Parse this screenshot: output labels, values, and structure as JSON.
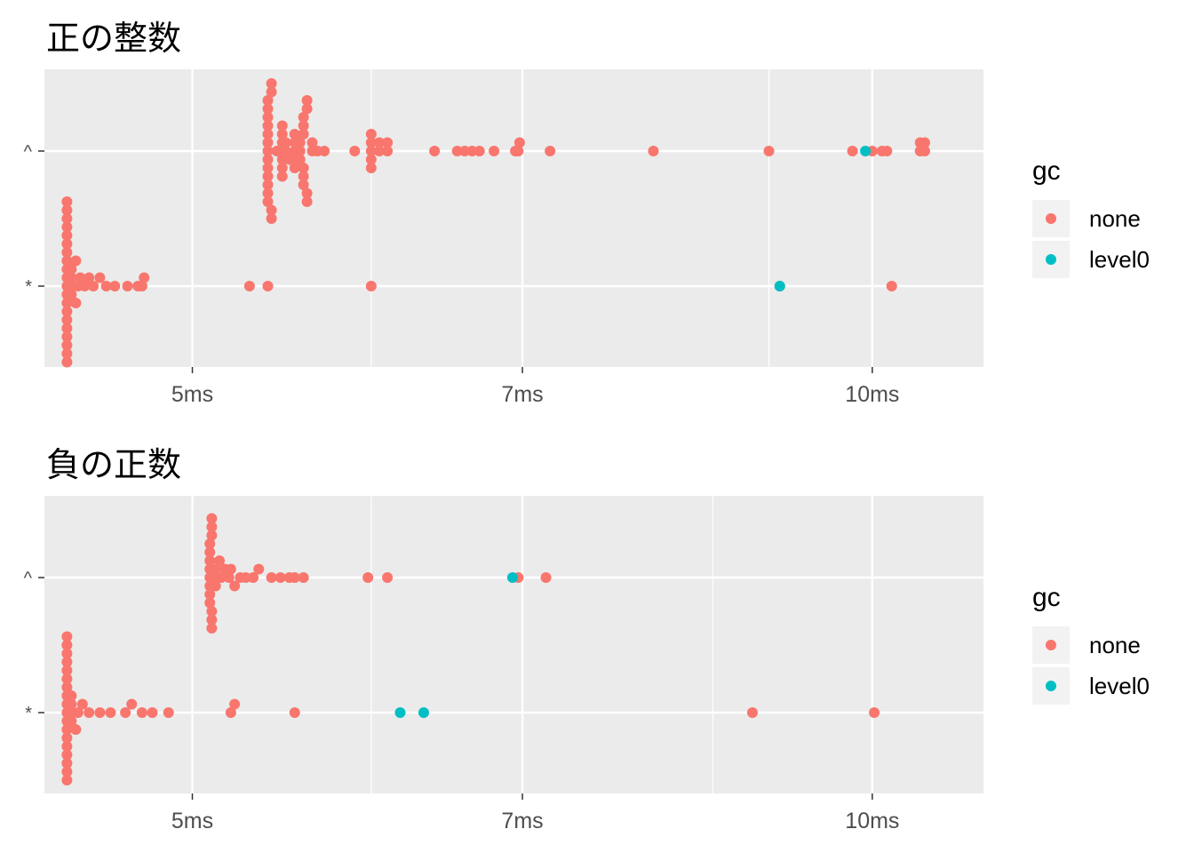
{
  "legend": {
    "title": "gc",
    "items": [
      {
        "label": "none",
        "color": "#F8766D"
      },
      {
        "label": "level0",
        "color": "#00BFC4"
      }
    ]
  },
  "chart_data": [
    {
      "type": "scatter",
      "title": "正の整数",
      "x_scale": "log",
      "x_unit": "ms",
      "xlim": [
        4.3,
        11.2
      ],
      "x_ticks": [
        5,
        7,
        10
      ],
      "x_tick_labels": [
        "5ms",
        "7ms",
        "10ms"
      ],
      "x_minor_gridlines": [
        6,
        9
      ],
      "y_categories": [
        "*",
        "^"
      ],
      "grid": true,
      "legend_position": "right",
      "series": [
        {
          "name": "none",
          "color": "#F8766D",
          "points": [
            {
              "y": "^",
              "x": [
                5.4,
                5.4,
                5.4,
                5.4,
                5.4,
                5.4,
                5.4,
                5.4,
                5.4,
                5.4,
                5.4,
                5.4,
                5.4,
                5.42,
                5.42,
                5.42,
                5.42,
                5.45,
                5.48,
                5.48,
                5.48,
                5.48,
                5.48,
                5.48,
                5.5,
                5.5,
                5.52,
                5.55,
                5.55,
                5.55,
                5.55,
                5.55,
                5.58,
                5.58,
                5.58,
                5.6,
                5.6,
                5.6,
                5.6,
                5.6,
                5.6,
                5.62,
                5.62,
                5.62,
                5.62,
                5.65,
                5.65,
                5.68,
                5.72,
                5.9,
                6.0,
                6.0,
                6.0,
                6.0,
                6.0,
                6.05,
                6.05,
                6.1,
                6.1,
                6.4,
                6.55,
                6.6,
                6.65,
                6.7,
                6.8,
                6.95,
                6.97,
                6.98,
                7.2,
                8.0,
                9.0,
                9.8,
                10.0,
                10.1,
                10.15,
                10.5,
                10.55,
                10.5,
                10.55
              ]
            },
            {
              "y": "*",
              "x": [
                4.4,
                4.4,
                4.4,
                4.4,
                4.4,
                4.4,
                4.4,
                4.4,
                4.4,
                4.4,
                4.4,
                4.4,
                4.4,
                4.4,
                4.4,
                4.4,
                4.4,
                4.4,
                4.4,
                4.4,
                4.42,
                4.42,
                4.42,
                4.42,
                4.44,
                4.44,
                4.45,
                4.46,
                4.48,
                4.5,
                4.52,
                4.55,
                4.58,
                4.62,
                4.68,
                4.73,
                4.75,
                4.76,
                5.3,
                5.4,
                6.0,
                9.1,
                10.2
              ]
            }
          ]
        },
        {
          "name": "level0",
          "color": "#00BFC4",
          "points": [
            {
              "y": "^",
              "x": [
                9.93
              ]
            },
            {
              "y": "*",
              "x": [
                9.1
              ]
            }
          ]
        }
      ]
    },
    {
      "type": "scatter",
      "title": "負の正数",
      "x_scale": "log",
      "x_unit": "ms",
      "xlim": [
        4.3,
        11.2
      ],
      "x_ticks": [
        5,
        7,
        10
      ],
      "x_tick_labels": [
        "5ms",
        "7ms",
        "10ms"
      ],
      "x_minor_gridlines": [
        6,
        8.5
      ],
      "y_categories": [
        "*",
        "^"
      ],
      "grid": true,
      "legend_position": "right",
      "series": [
        {
          "name": "none",
          "color": "#F8766D",
          "points": [
            {
              "y": "^",
              "x": [
                5.09,
                5.09,
                5.09,
                5.09,
                5.09,
                5.09,
                5.09,
                5.09,
                5.1,
                5.1,
                5.1,
                5.1,
                5.1,
                5.1,
                5.12,
                5.12,
                5.12,
                5.14,
                5.15,
                5.17,
                5.19,
                5.2,
                5.22,
                5.25,
                5.28,
                5.32,
                5.35,
                5.42,
                5.47,
                5.52,
                5.55,
                5.6,
                5.98,
                6.1,
                6.97,
                7.17
              ]
            },
            {
              "y": "*",
              "x": [
                4.4,
                4.4,
                4.4,
                4.4,
                4.4,
                4.4,
                4.4,
                4.4,
                4.4,
                4.4,
                4.4,
                4.4,
                4.4,
                4.4,
                4.4,
                4.4,
                4.4,
                4.4,
                4.42,
                4.42,
                4.42,
                4.42,
                4.44,
                4.45,
                4.47,
                4.5,
                4.55,
                4.6,
                4.67,
                4.7,
                4.75,
                4.8,
                4.88,
                5.2,
                5.22,
                5.55,
                8.85,
                10.02
              ]
            }
          ]
        },
        {
          "name": "level0",
          "color": "#00BFC4",
          "points": [
            {
              "y": "^",
              "x": [
                6.93
              ]
            },
            {
              "y": "*",
              "x": [
                6.18,
                6.33
              ]
            }
          ]
        }
      ]
    }
  ]
}
